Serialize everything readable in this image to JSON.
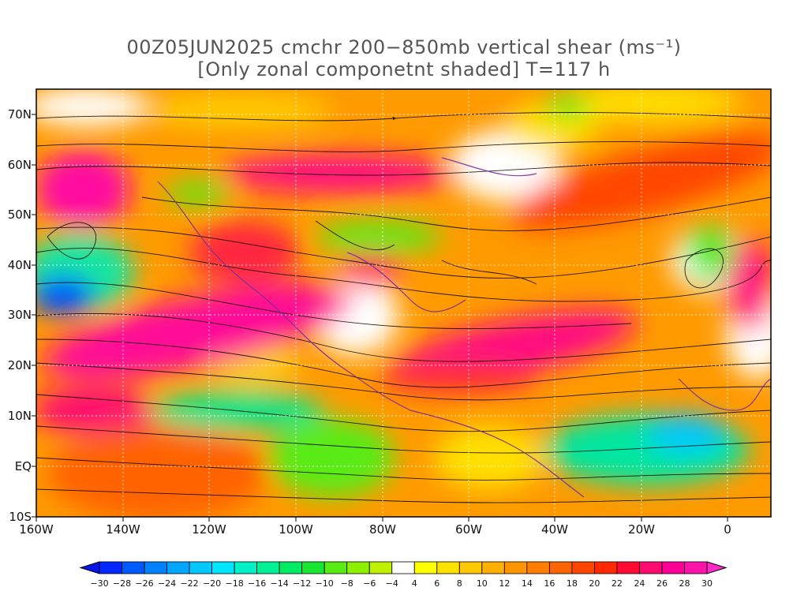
{
  "title_line1": "00Z05JUN2025 cmchr 200−850mb vertical shear (ms⁻¹)",
  "title_line2": "[Only zonal componetnt shaded] T=117 h",
  "lat_labels": [
    "70N",
    "60N",
    "50N",
    "40N",
    "30N",
    "20N",
    "10N",
    "EQ",
    "10S"
  ],
  "lon_labels": [
    "160W",
    "140W",
    "120W",
    "100W",
    "80W",
    "60W",
    "40W",
    "20W",
    "0"
  ],
  "colorbar_labels": [
    "−30",
    "−28",
    "−26",
    "−24",
    "−22",
    "−20",
    "−18",
    "−16",
    "−14",
    "−12",
    "−10",
    "−8",
    "−6",
    "−4",
    "4",
    "6",
    "8",
    "10",
    "12",
    "14",
    "16",
    "18",
    "20",
    "22",
    "24",
    "26",
    "28",
    "30"
  ],
  "colorbar_colors": [
    "#0028ff",
    "#005aff",
    "#0082ff",
    "#00a6ff",
    "#00c8ff",
    "#00e6ff",
    "#00f0c8",
    "#00f096",
    "#00eb64",
    "#19e632",
    "#5aeb14",
    "#8cf000",
    "#bef000",
    "#ffffff",
    "#ffff00",
    "#ffe100",
    "#ffc800",
    "#ffaf00",
    "#ff9600",
    "#ff7d00",
    "#ff6400",
    "#ff4600",
    "#ff2800",
    "#ff0a32",
    "#ff0a6e",
    "#ff0096",
    "#ff14aa"
  ],
  "map_region": {
    "lon_range": [
      -160,
      10
    ],
    "lat_range": [
      -10,
      75
    ]
  },
  "shaded_variable": "zonal vertical shear",
  "overlay": "streamlines"
}
